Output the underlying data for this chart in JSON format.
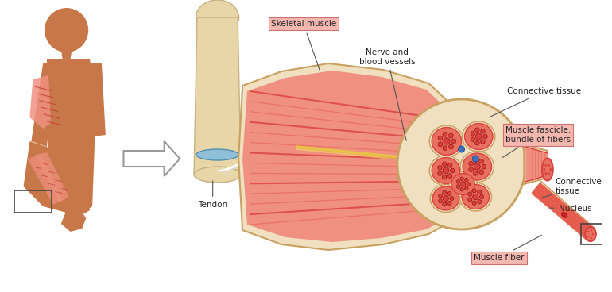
{
  "bg_color": "#ffffff",
  "fig_width": 7.7,
  "fig_height": 3.68,
  "labels": {
    "skeletal_muscle": "Skeletal muscle",
    "nerve_blood": "Nerve and\nblood vessels",
    "connective_tissue_1": "Connective tissue",
    "muscle_fascicle": "Muscle fascicle:\nbundle of fibers",
    "connective_tissue_2": "Connective\ntissue",
    "nucleus": "Nucleus",
    "tendon": "Tendon",
    "muscle_fiber": "Muscle fiber"
  },
  "label_box_color": "#f5b8b0",
  "label_box_edge": "#cc7070",
  "muscle_red_dark": "#d94040",
  "muscle_red_mid": "#e86050",
  "muscle_red_light": "#f09080",
  "muscle_pink": "#f5b8a8",
  "connective_cream": "#f0e0c0",
  "tendon_color": "#d4c090",
  "bone_color": "#e8d5a8",
  "bone_edge": "#c8b080",
  "skin_dark": "#b06838",
  "skin_mid": "#c87848",
  "muscle_stripe": "#c03030",
  "fascicle_fill": "#e87060",
  "fascicle_inner": "#d04848",
  "blue_dot": "#4070b8"
}
